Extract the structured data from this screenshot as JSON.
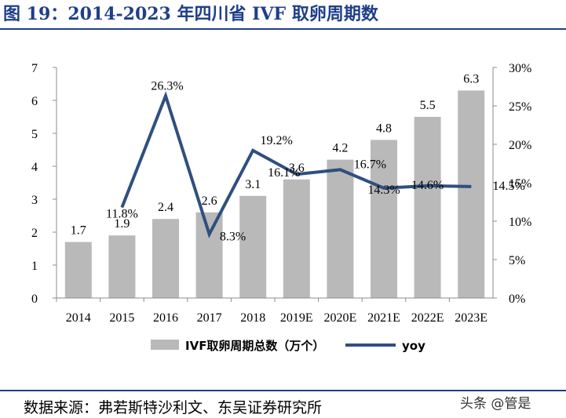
{
  "header": {
    "title": "图 19：2014-2023 年四川省 IVF 取卵周期数"
  },
  "footer": {
    "source": "数据来源：弗若斯特沙利文、东吴证券研究所",
    "watermark": "头条 @管是"
  },
  "colors": {
    "title": "#1f3f8a",
    "bar": "#b9b9b9",
    "line": "#2f4f7f",
    "axis": "#8c8c8c"
  },
  "chart_data": {
    "type": "bar",
    "categories": [
      "2014",
      "2015",
      "2016",
      "2017",
      "2018",
      "2019E",
      "2020E",
      "2021E",
      "2022E",
      "2023E"
    ],
    "series": [
      {
        "name": "IVF取卵周期总数（万个）",
        "type": "bar",
        "axis": "left",
        "values": [
          1.7,
          1.9,
          2.4,
          2.6,
          3.1,
          3.6,
          4.2,
          4.8,
          5.5,
          6.3
        ],
        "labels": [
          "1.7",
          "1.9",
          "2.4",
          "2.6",
          "3.1",
          "3.6",
          "4.2",
          "4.8",
          "5.5",
          "6.3"
        ]
      },
      {
        "name": "yoy",
        "type": "line",
        "axis": "right",
        "values": [
          null,
          11.8,
          26.3,
          8.3,
          19.2,
          16.1,
          16.7,
          14.3,
          14.6,
          14.5
        ],
        "labels": [
          "",
          "11.8%",
          "26.3%",
          "8.3%",
          "19.2%",
          "16.1%",
          "16.7%",
          "14.3%",
          "14.6%",
          "14.5%"
        ]
      }
    ],
    "y_left": {
      "min": 0,
      "max": 7,
      "ticks": [
        "0",
        "1",
        "2",
        "3",
        "4",
        "5",
        "6",
        "7"
      ]
    },
    "y_right": {
      "min": 0,
      "max": 30,
      "ticks": [
        "0%",
        "5%",
        "10%",
        "15%",
        "20%",
        "25%",
        "30%"
      ]
    },
    "legend_position": "bottom"
  }
}
